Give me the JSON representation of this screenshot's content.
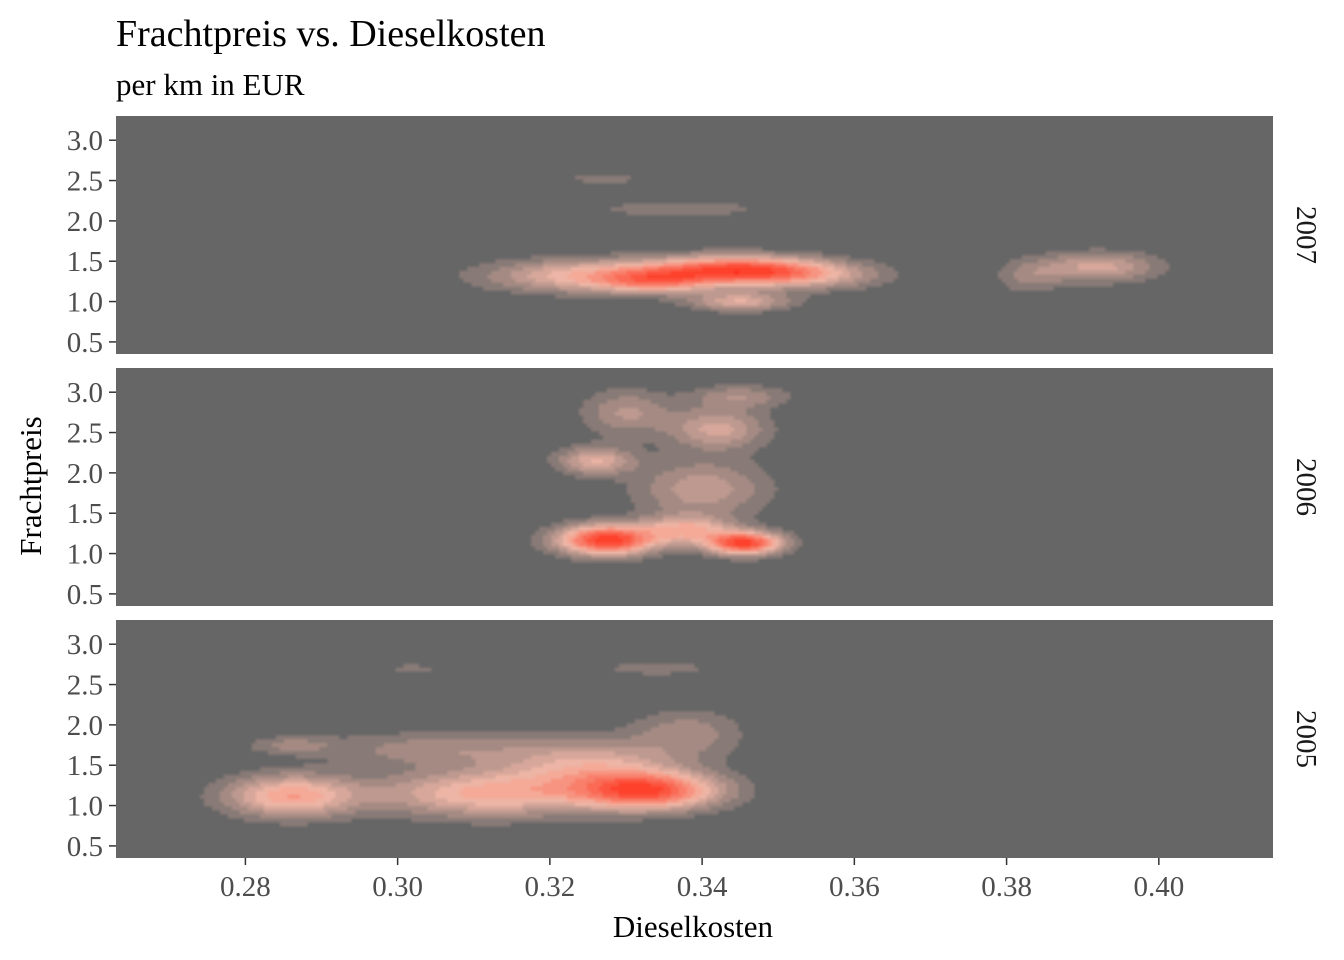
{
  "chart_data": {
    "type": "heatmap",
    "subtype": "2d-density-faceted",
    "title": "Frachtpreis vs. Dieselkosten",
    "subtitle": "per km in EUR",
    "xlabel": "Dieselkosten",
    "ylabel": "Frachtpreis",
    "xlim": [
      0.263,
      0.415
    ],
    "ylim": [
      0.35,
      3.3
    ],
    "x_ticks": [
      0.28,
      0.3,
      0.32,
      0.34,
      0.36,
      0.38,
      0.4
    ],
    "x_tick_labels": [
      "0.28",
      "0.30",
      "0.32",
      "0.34",
      "0.36",
      "0.38",
      "0.40"
    ],
    "y_ticks": [
      0.5,
      1.0,
      1.5,
      2.0,
      2.5,
      3.0
    ],
    "y_tick_labels": [
      "0.5",
      "1.0",
      "1.5",
      "2.0",
      "2.5",
      "3.0"
    ],
    "panel_background": "#666666",
    "low_density_color": "#666666",
    "mid_density_color": "#f4b9a8",
    "high_density_color": "#ff2d16",
    "grid": false,
    "legend": "none",
    "facets": [
      {
        "label": "2007",
        "clusters": [
          {
            "x": 0.326,
            "y": 1.32,
            "sx": 0.0095,
            "sy": 0.14,
            "w": 0.62
          },
          {
            "x": 0.344,
            "y": 1.4,
            "sx": 0.0075,
            "sy": 0.12,
            "w": 0.92
          },
          {
            "x": 0.345,
            "y": 1.0,
            "sx": 0.0045,
            "sy": 0.08,
            "w": 0.5
          },
          {
            "x": 0.353,
            "y": 1.33,
            "sx": 0.007,
            "sy": 0.12,
            "w": 0.5
          },
          {
            "x": 0.334,
            "y": 1.25,
            "sx": 0.005,
            "sy": 0.1,
            "w": 0.5
          },
          {
            "x": 0.337,
            "y": 2.15,
            "sx": 0.01,
            "sy": 0.1,
            "w": 0.15
          },
          {
            "x": 0.327,
            "y": 2.52,
            "sx": 0.0035,
            "sy": 0.045,
            "w": 0.18
          },
          {
            "x": 0.392,
            "y": 1.43,
            "sx": 0.0055,
            "sy": 0.13,
            "w": 0.45
          },
          {
            "x": 0.383,
            "y": 1.3,
            "sx": 0.003,
            "sy": 0.15,
            "w": 0.2
          }
        ]
      },
      {
        "label": "2006",
        "clusters": [
          {
            "x": 0.3275,
            "y": 1.17,
            "sx": 0.0045,
            "sy": 0.13,
            "w": 0.95
          },
          {
            "x": 0.3455,
            "y": 1.13,
            "sx": 0.0035,
            "sy": 0.1,
            "w": 0.9
          },
          {
            "x": 0.338,
            "y": 1.3,
            "sx": 0.004,
            "sy": 0.12,
            "w": 0.45
          },
          {
            "x": 0.326,
            "y": 2.15,
            "sx": 0.0035,
            "sy": 0.12,
            "w": 0.4
          },
          {
            "x": 0.33,
            "y": 2.75,
            "sx": 0.004,
            "sy": 0.2,
            "w": 0.25
          },
          {
            "x": 0.342,
            "y": 2.55,
            "sx": 0.0045,
            "sy": 0.18,
            "w": 0.35
          },
          {
            "x": 0.345,
            "y": 2.95,
            "sx": 0.0045,
            "sy": 0.1,
            "w": 0.22
          },
          {
            "x": 0.34,
            "y": 1.8,
            "sx": 0.006,
            "sy": 0.25,
            "w": 0.3
          }
        ]
      },
      {
        "label": "2005",
        "clusters": [
          {
            "x": 0.286,
            "y": 1.12,
            "sx": 0.006,
            "sy": 0.18,
            "w": 0.65
          },
          {
            "x": 0.312,
            "y": 1.15,
            "sx": 0.01,
            "sy": 0.2,
            "w": 0.6
          },
          {
            "x": 0.333,
            "y": 1.18,
            "sx": 0.0065,
            "sy": 0.16,
            "w": 0.95
          },
          {
            "x": 0.3255,
            "y": 1.5,
            "sx": 0.008,
            "sy": 0.22,
            "w": 0.45
          },
          {
            "x": 0.338,
            "y": 1.9,
            "sx": 0.005,
            "sy": 0.2,
            "w": 0.25
          },
          {
            "x": 0.305,
            "y": 1.7,
            "sx": 0.01,
            "sy": 0.15,
            "w": 0.25
          },
          {
            "x": 0.286,
            "y": 1.75,
            "sx": 0.004,
            "sy": 0.08,
            "w": 0.2
          },
          {
            "x": 0.334,
            "y": 2.7,
            "sx": 0.005,
            "sy": 0.06,
            "w": 0.18
          },
          {
            "x": 0.302,
            "y": 2.7,
            "sx": 0.0025,
            "sy": 0.04,
            "w": 0.15
          }
        ]
      }
    ]
  }
}
